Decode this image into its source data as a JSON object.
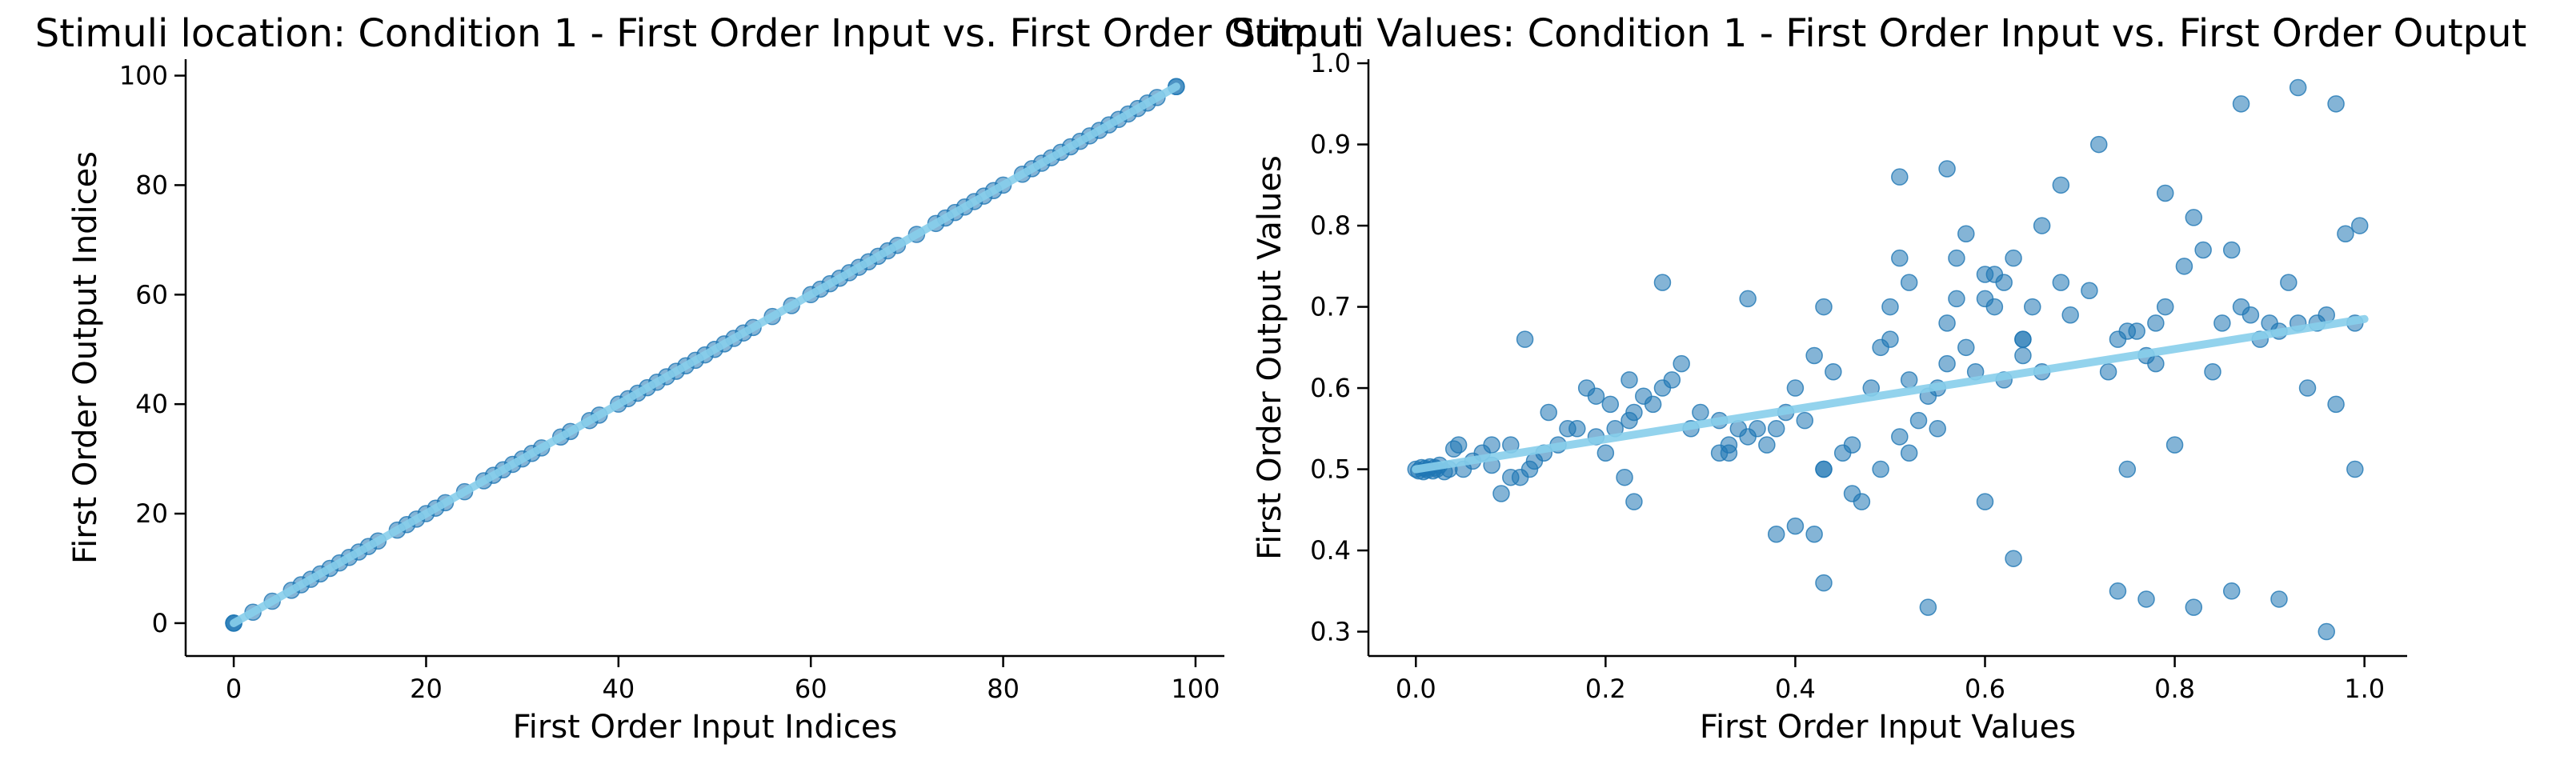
{
  "chart_data": [
    {
      "type": "scatter",
      "title": "Stimuli location: Condition 1 - First Order Input vs. First Order Output",
      "xlabel": "First Order Input Indices",
      "ylabel": "First Order Output Indices",
      "xlim": [
        -5,
        103
      ],
      "ylim": [
        -6,
        103
      ],
      "xticks": [
        0,
        20,
        40,
        60,
        80,
        100
      ],
      "yticks": [
        0,
        20,
        40,
        60,
        80,
        100
      ],
      "grid": false,
      "point_color": "#1f77b4",
      "trend_color": "#87ceeb",
      "trend": {
        "x": [
          0,
          98
        ],
        "y": [
          0,
          98
        ]
      },
      "series": [
        {
          "x": [
            0,
            0,
            0,
            2,
            4,
            6,
            7,
            8,
            9,
            10,
            11,
            12,
            13,
            14,
            15,
            17,
            18,
            19,
            20,
            21,
            22,
            24,
            26,
            27,
            28,
            29,
            30,
            31,
            32,
            34,
            35,
            37,
            38,
            40,
            41,
            42,
            43,
            44,
            45,
            46,
            47,
            48,
            49,
            50,
            51,
            52,
            53,
            54,
            56,
            58,
            60,
            61,
            62,
            63,
            64,
            65,
            66,
            67,
            68,
            69,
            71,
            73,
            74,
            75,
            76,
            77,
            78,
            79,
            80,
            82,
            83,
            84,
            85,
            86,
            87,
            88,
            89,
            90,
            91,
            92,
            93,
            94,
            95,
            96,
            98,
            98
          ],
          "y": [
            0,
            0,
            0,
            2,
            4,
            6,
            7,
            8,
            9,
            10,
            11,
            12,
            13,
            14,
            15,
            17,
            18,
            19,
            20,
            21,
            22,
            24,
            26,
            27,
            28,
            29,
            30,
            31,
            32,
            34,
            35,
            37,
            38,
            40,
            41,
            42,
            43,
            44,
            45,
            46,
            47,
            48,
            49,
            50,
            51,
            52,
            53,
            54,
            56,
            58,
            60,
            61,
            62,
            63,
            64,
            65,
            66,
            67,
            68,
            69,
            71,
            73,
            74,
            75,
            76,
            77,
            78,
            79,
            80,
            82,
            83,
            84,
            85,
            86,
            87,
            88,
            89,
            90,
            91,
            92,
            93,
            94,
            95,
            96,
            98,
            98
          ]
        }
      ]
    },
    {
      "type": "scatter",
      "title": "Stimuli Values: Condition 1 - First Order Input vs. First Order Output",
      "xlabel": "First Order Input Values",
      "ylabel": "First Order Output Values",
      "xlim": [
        -0.05,
        1.045
      ],
      "ylim": [
        0.27,
        1.005
      ],
      "xticks": [
        0.0,
        0.2,
        0.4,
        0.6,
        0.8,
        1.0
      ],
      "yticks": [
        0.3,
        0.4,
        0.5,
        0.6,
        0.7,
        0.8,
        0.9,
        1.0
      ],
      "grid": false,
      "point_color": "#1f77b4",
      "trend_color": "#87ceeb",
      "trend": {
        "x": [
          0.0,
          1.0
        ],
        "y": [
          0.5,
          0.685
        ]
      },
      "series": [
        {
          "x": [
            0.0,
            0.003,
            0.006,
            0.008,
            0.01,
            0.012,
            0.015,
            0.018,
            0.02,
            0.022,
            0.025,
            0.03,
            0.035,
            0.04,
            0.045,
            0.05,
            0.06,
            0.07,
            0.08,
            0.09,
            0.1,
            0.11,
            0.12,
            0.125,
            0.135,
            0.15,
            0.16,
            0.17,
            0.18,
            0.19,
            0.2,
            0.21,
            0.22,
            0.225,
            0.23,
            0.24,
            0.25,
            0.26,
            0.27,
            0.28,
            0.29,
            0.3,
            0.32,
            0.33,
            0.34,
            0.35,
            0.36,
            0.37,
            0.38,
            0.39,
            0.4,
            0.41,
            0.42,
            0.43,
            0.44,
            0.45,
            0.46,
            0.47,
            0.48,
            0.49,
            0.5,
            0.5,
            0.51,
            0.52,
            0.53,
            0.54,
            0.55,
            0.56,
            0.56,
            0.57,
            0.58,
            0.59,
            0.6,
            0.61,
            0.62,
            0.63,
            0.64,
            0.64,
            0.65,
            0.66,
            0.68,
            0.69,
            0.71,
            0.73,
            0.74,
            0.75,
            0.76,
            0.77,
            0.78,
            0.78,
            0.79,
            0.8,
            0.81,
            0.82,
            0.83,
            0.84,
            0.85,
            0.86,
            0.87,
            0.88,
            0.89,
            0.9,
            0.91,
            0.92,
            0.93,
            0.94,
            0.95,
            0.96,
            0.97,
            0.98,
            0.99,
            0.995,
            0.42,
            0.43,
            0.46,
            0.51,
            0.52,
            0.56,
            0.58,
            0.6,
            0.62,
            0.64,
            0.68,
            0.72,
            0.52,
            0.38,
            0.4,
            0.6,
            0.63,
            0.74,
            0.77,
            0.82,
            0.86,
            0.91,
            0.96,
            0.32,
            0.51,
            0.55,
            0.57,
            0.33,
            0.43,
            0.54,
            0.26,
            0.19,
            0.23,
            0.08,
            0.1,
            0.115,
            0.205,
            0.225,
            0.14,
            0.35,
            0.43,
            0.49,
            0.61,
            0.66,
            0.75,
            0.79,
            0.87,
            0.93,
            0.97,
            0.99
          ],
          "y": [
            0.5,
            0.498,
            0.502,
            0.497,
            0.501,
            0.499,
            0.503,
            0.498,
            0.502,
            0.5,
            0.505,
            0.497,
            0.5,
            0.525,
            0.53,
            0.5,
            0.51,
            0.52,
            0.505,
            0.47,
            0.53,
            0.49,
            0.5,
            0.51,
            0.52,
            0.53,
            0.55,
            0.55,
            0.6,
            0.54,
            0.52,
            0.55,
            0.49,
            0.56,
            0.57,
            0.59,
            0.58,
            0.6,
            0.61,
            0.63,
            0.55,
            0.57,
            0.52,
            0.53,
            0.55,
            0.54,
            0.55,
            0.53,
            0.55,
            0.57,
            0.6,
            0.56,
            0.64,
            0.5,
            0.62,
            0.52,
            0.53,
            0.46,
            0.6,
            0.65,
            0.66,
            0.7,
            0.54,
            0.61,
            0.56,
            0.59,
            0.6,
            0.63,
            0.68,
            0.71,
            0.65,
            0.62,
            0.71,
            0.74,
            0.73,
            0.76,
            0.66,
            0.64,
            0.7,
            0.62,
            0.73,
            0.69,
            0.72,
            0.62,
            0.66,
            0.67,
            0.67,
            0.64,
            0.68,
            0.63,
            0.7,
            0.53,
            0.75,
            0.81,
            0.77,
            0.62,
            0.68,
            0.77,
            0.7,
            0.69,
            0.66,
            0.68,
            0.67,
            0.73,
            0.68,
            0.6,
            0.68,
            0.69,
            0.58,
            0.79,
            0.68,
            0.8,
            0.42,
            0.36,
            0.47,
            0.86,
            0.52,
            0.87,
            0.79,
            0.74,
            0.61,
            0.66,
            0.85,
            0.9,
            0.73,
            0.42,
            0.43,
            0.46,
            0.39,
            0.35,
            0.34,
            0.33,
            0.35,
            0.34,
            0.3,
            0.56,
            0.76,
            0.55,
            0.76,
            0.52,
            0.7,
            0.33,
            0.73,
            0.59,
            0.46,
            0.53,
            0.49,
            0.66,
            0.58,
            0.61,
            0.57,
            0.71,
            0.5,
            0.5,
            0.7,
            0.8,
            0.5,
            0.84,
            0.95,
            0.97,
            0.95,
            0.5
          ]
        }
      ]
    }
  ]
}
